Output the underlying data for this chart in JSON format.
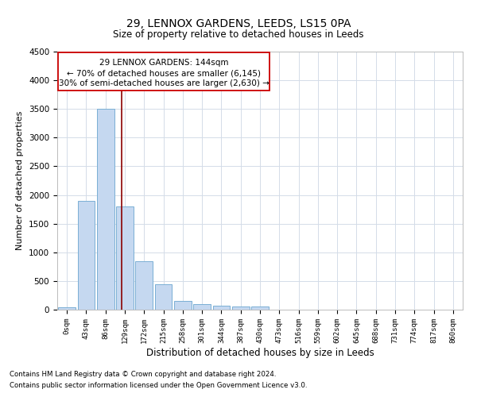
{
  "title1": "29, LENNOX GARDENS, LEEDS, LS15 0PA",
  "title2": "Size of property relative to detached houses in Leeds",
  "xlabel": "Distribution of detached houses by size in Leeds",
  "ylabel": "Number of detached properties",
  "bin_labels": [
    "0sqm",
    "43sqm",
    "86sqm",
    "129sqm",
    "172sqm",
    "215sqm",
    "258sqm",
    "301sqm",
    "344sqm",
    "387sqm",
    "430sqm",
    "473sqm",
    "516sqm",
    "559sqm",
    "602sqm",
    "645sqm",
    "688sqm",
    "731sqm",
    "774sqm",
    "817sqm",
    "860sqm"
  ],
  "bar_values": [
    45,
    1900,
    3500,
    1800,
    850,
    450,
    155,
    100,
    75,
    60,
    50,
    0,
    0,
    0,
    0,
    0,
    0,
    0,
    0,
    0,
    0
  ],
  "bar_color": "#c5d8f0",
  "bar_edge_color": "#7aafd4",
  "ylim": [
    0,
    4500
  ],
  "yticks": [
    0,
    500,
    1000,
    1500,
    2000,
    2500,
    3000,
    3500,
    4000,
    4500
  ],
  "red_line_x": 2.83,
  "ann_line1": "29 LENNOX GARDENS: 144sqm",
  "ann_line2": "← 70% of detached houses are smaller (6,145)",
  "ann_line3": "30% of semi-detached houses are larger (2,630) →",
  "footer1": "Contains HM Land Registry data © Crown copyright and database right 2024.",
  "footer2": "Contains public sector information licensed under the Open Government Licence v3.0.",
  "background_color": "#ffffff",
  "grid_color": "#d4dce8"
}
